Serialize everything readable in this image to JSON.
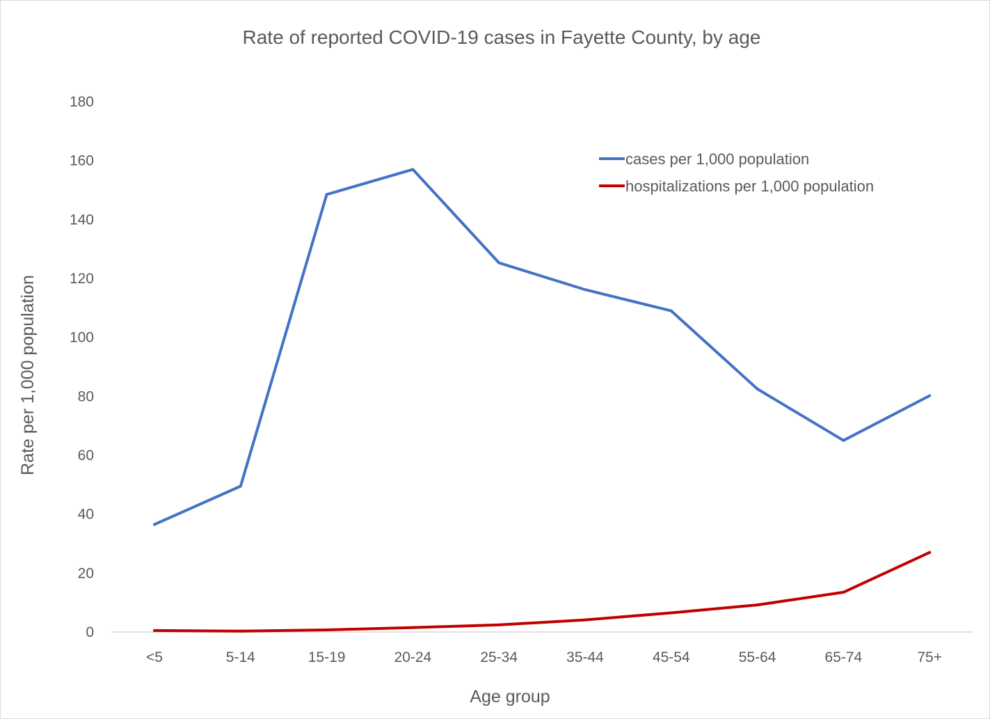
{
  "chart_data": {
    "type": "line",
    "title": "Rate of reported COVID-19 cases in Fayette County, by age",
    "xlabel": "Age group",
    "ylabel": "Rate per 1,000 population",
    "categories": [
      "<5",
      "5-14",
      "15-19",
      "20-24",
      "25-34",
      "35-44",
      "45-54",
      "55-64",
      "65-74",
      "75+"
    ],
    "ylim": [
      0,
      180
    ],
    "yticks": [
      0,
      20,
      40,
      60,
      80,
      100,
      120,
      140,
      160,
      180
    ],
    "grid": false,
    "legend_position": "top-right",
    "series": [
      {
        "name": "cases per 1,000 population",
        "color": "#4472c4",
        "values": [
          36.5,
          49.5,
          148.5,
          157,
          125.3,
          116.2,
          109,
          82.5,
          65,
          80.2
        ]
      },
      {
        "name": "hospitalizations per 1,000 population",
        "color": "#c00000",
        "values": [
          0.5,
          0.3,
          0.7,
          1.5,
          2.4,
          4.1,
          6.5,
          9.2,
          13.5,
          27
        ]
      }
    ]
  }
}
